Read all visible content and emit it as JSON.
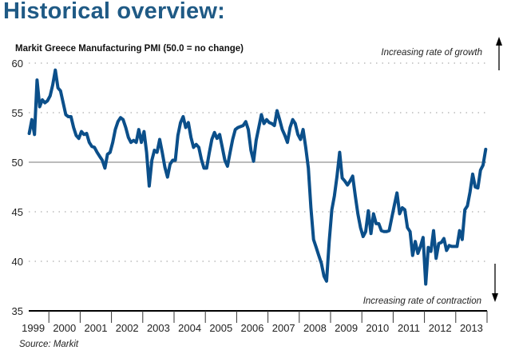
{
  "heading": "Historical overview:",
  "colors": {
    "heading": "#1f5a85",
    "line": "#0b4f8a",
    "axis": "#000000",
    "grid": "#9a9a9a",
    "baseline": "#777777"
  },
  "source": "Source: Markit",
  "chart_data": {
    "type": "line",
    "title": "Markit Greece Manufacturing PMI (50.0 = no change)",
    "xlabel": "",
    "ylabel": "",
    "ylim": [
      35,
      60
    ],
    "yticks": [
      "35",
      "40",
      "45",
      "50",
      "55",
      "60"
    ],
    "ytick_values": [
      35,
      40,
      45,
      50,
      55,
      60
    ],
    "xticks": [
      "1999",
      "2000",
      "2001",
      "2002",
      "2003",
      "2004",
      "2005",
      "2006",
      "2007",
      "2008",
      "2009",
      "2010",
      "2011",
      "2012",
      "2013"
    ],
    "xlim": [
      1999,
      2014
    ],
    "reference_line": 50,
    "grid": "dotted horizontal at 45, 55, 60 and 40",
    "annotations": {
      "top": "Increasing rate of growth",
      "bottom": "Increasing rate of contraction"
    },
    "series": [
      {
        "name": "Markit Greece Manufacturing PMI",
        "start": "1999-05",
        "frequency": "monthly",
        "values": [
          52.9,
          54.3,
          52.8,
          58.3,
          55.6,
          56.3,
          56.0,
          56.2,
          56.7,
          57.8,
          59.3,
          57.5,
          57.2,
          56.0,
          54.8,
          54.6,
          54.6,
          53.5,
          52.7,
          52.4,
          53.1,
          52.8,
          52.9,
          52.0,
          51.6,
          51.5,
          51.0,
          50.6,
          50.2,
          49.4,
          50.8,
          51.0,
          52.0,
          53.3,
          54.1,
          54.5,
          54.3,
          53.5,
          52.5,
          52.0,
          52.2,
          52.0,
          53.3,
          52.0,
          53.1,
          51.0,
          47.6,
          50.2,
          51.2,
          51.0,
          52.3,
          51.0,
          49.5,
          48.5,
          49.8,
          50.2,
          50.2,
          52.7,
          54.0,
          54.6,
          53.5,
          54.0,
          52.5,
          51.5,
          51.8,
          51.5,
          50.3,
          49.4,
          49.4,
          50.9,
          52.3,
          53.0,
          52.4,
          52.8,
          51.5,
          50.2,
          49.6,
          51.0,
          52.3,
          53.3,
          53.5,
          53.6,
          53.7,
          54.1,
          53.3,
          51.2,
          50.1,
          52.2,
          53.5,
          54.8,
          53.9,
          54.3,
          54.0,
          53.9,
          53.7,
          55.2,
          54.3,
          53.3,
          52.7,
          52.0,
          53.5,
          54.3,
          53.9,
          52.8,
          52.3,
          53.3,
          51.5,
          49.4,
          45.4,
          42.2,
          41.4,
          40.6,
          39.8,
          38.5,
          38.0,
          42.0,
          45.2,
          46.6,
          48.6,
          51.0,
          48.4,
          48.1,
          47.7,
          48.1,
          48.6,
          46.6,
          44.8,
          43.4,
          42.5,
          43.0,
          45.1,
          42.8,
          44.8,
          43.8,
          43.8,
          43.1,
          43.0,
          43.0,
          43.1,
          44.4,
          45.7,
          46.9,
          44.8,
          45.4,
          45.2,
          43.4,
          43.0,
          40.6,
          42.0,
          40.8,
          41.5,
          42.4,
          37.7,
          41.4,
          41.0,
          43.1,
          40.3,
          41.8,
          41.9,
          42.3,
          41.1,
          41.6,
          41.5,
          41.5,
          41.5,
          43.1,
          42.2,
          45.2,
          45.6,
          47.0,
          48.8,
          47.5,
          47.4,
          49.2,
          49.7,
          51.3
        ]
      }
    ]
  }
}
